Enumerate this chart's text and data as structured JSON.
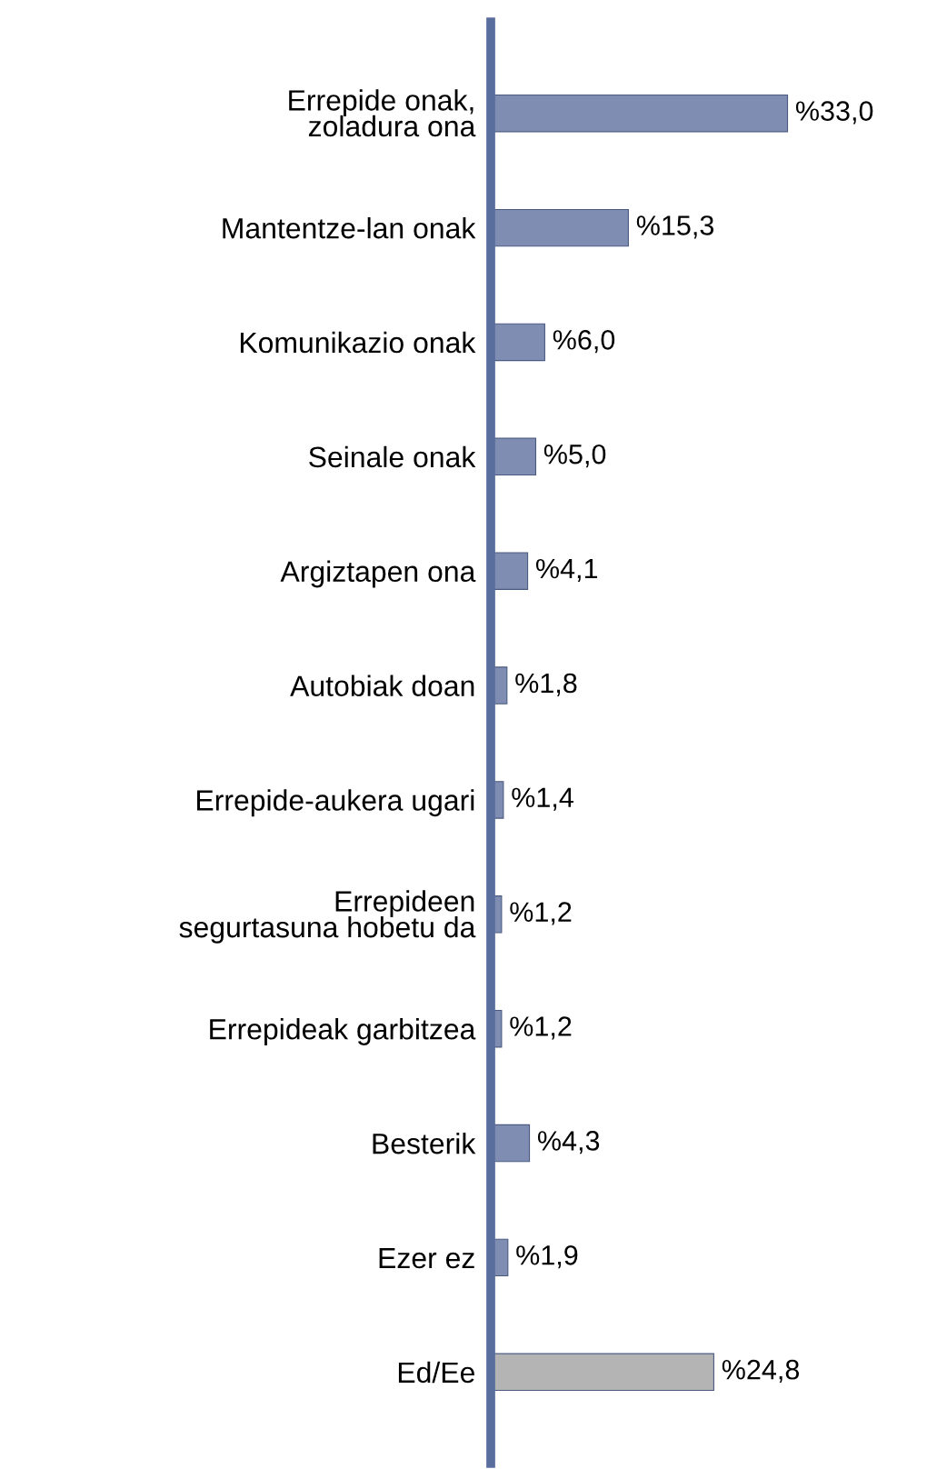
{
  "chart_data": {
    "type": "bar",
    "orientation": "horizontal",
    "categories": [
      "Errepide onak,\nzoladura ona",
      "Mantentze-lan onak",
      "Komunikazio onak",
      "Seinale onak",
      "Argiztapen ona",
      "Autobiak doan",
      "Errepide-aukera ugari",
      "Errepideen\nsegurtasuna hobetu da",
      "Errepideak garbitzea",
      "Besterik",
      "Ezer ez",
      "Ed/Ee"
    ],
    "values": [
      33.0,
      15.3,
      6.0,
      5.0,
      4.1,
      1.8,
      1.4,
      1.2,
      1.2,
      4.3,
      1.9,
      24.8
    ],
    "value_labels": [
      "%33,0",
      "%15,3",
      "%6,0",
      "%5,0",
      "%4,1",
      "%1,8",
      "%1,4",
      "%1,2",
      "%1,2",
      "%4,3",
      "%1,9",
      "%24,8"
    ],
    "colors": [
      "#7f8db3",
      "#7f8db3",
      "#7f8db3",
      "#7f8db3",
      "#7f8db3",
      "#7f8db3",
      "#7f8db3",
      "#7f8db3",
      "#7f8db3",
      "#7f8db3",
      "#7f8db3",
      "#b4b4b4"
    ],
    "grid": false,
    "legend": false
  }
}
